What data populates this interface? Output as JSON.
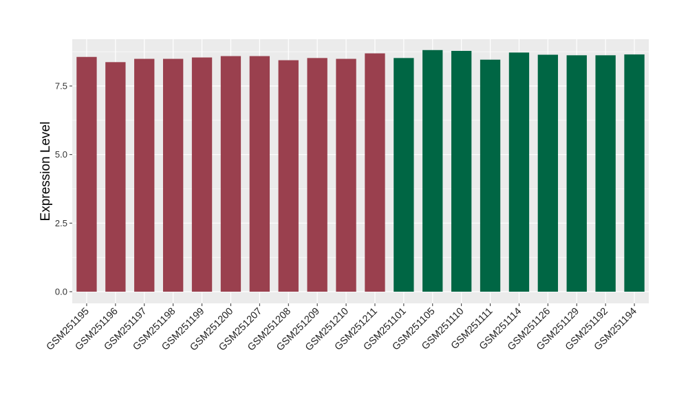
{
  "chart_data": {
    "type": "bar",
    "title": "",
    "xlabel": "",
    "ylabel": "Expression Level",
    "ylim": [
      0,
      8.6
    ],
    "yticks": [
      0.0,
      2.5,
      5.0,
      7.5
    ],
    "ytick_labels": [
      "0.0",
      "2.5",
      "5.0",
      "7.5"
    ],
    "grid": true,
    "legend": "none",
    "categories": [
      "GSM251195",
      "GSM251196",
      "GSM251197",
      "GSM251198",
      "GSM251199",
      "GSM251200",
      "GSM251207",
      "GSM251208",
      "GSM251209",
      "GSM251210",
      "GSM251211",
      "GSM251101",
      "GSM251105",
      "GSM251110",
      "GSM251111",
      "GSM251114",
      "GSM251126",
      "GSM251129",
      "GSM251192",
      "GSM251194"
    ],
    "values": [
      8.56,
      8.37,
      8.49,
      8.49,
      8.54,
      8.59,
      8.59,
      8.44,
      8.52,
      8.49,
      8.69,
      8.52,
      8.81,
      8.78,
      8.46,
      8.72,
      8.64,
      8.62,
      8.62,
      8.65
    ],
    "groups": [
      "g1",
      "g1",
      "g1",
      "g1",
      "g1",
      "g1",
      "g1",
      "g1",
      "g1",
      "g1",
      "g1",
      "g2",
      "g2",
      "g2",
      "g2",
      "g2",
      "g2",
      "g2",
      "g2",
      "g2"
    ],
    "colors": {
      "g1": "#9a404e",
      "g2": "#006644"
    },
    "panel_background": "#ebebeb",
    "grid_color": "#ffffff"
  }
}
